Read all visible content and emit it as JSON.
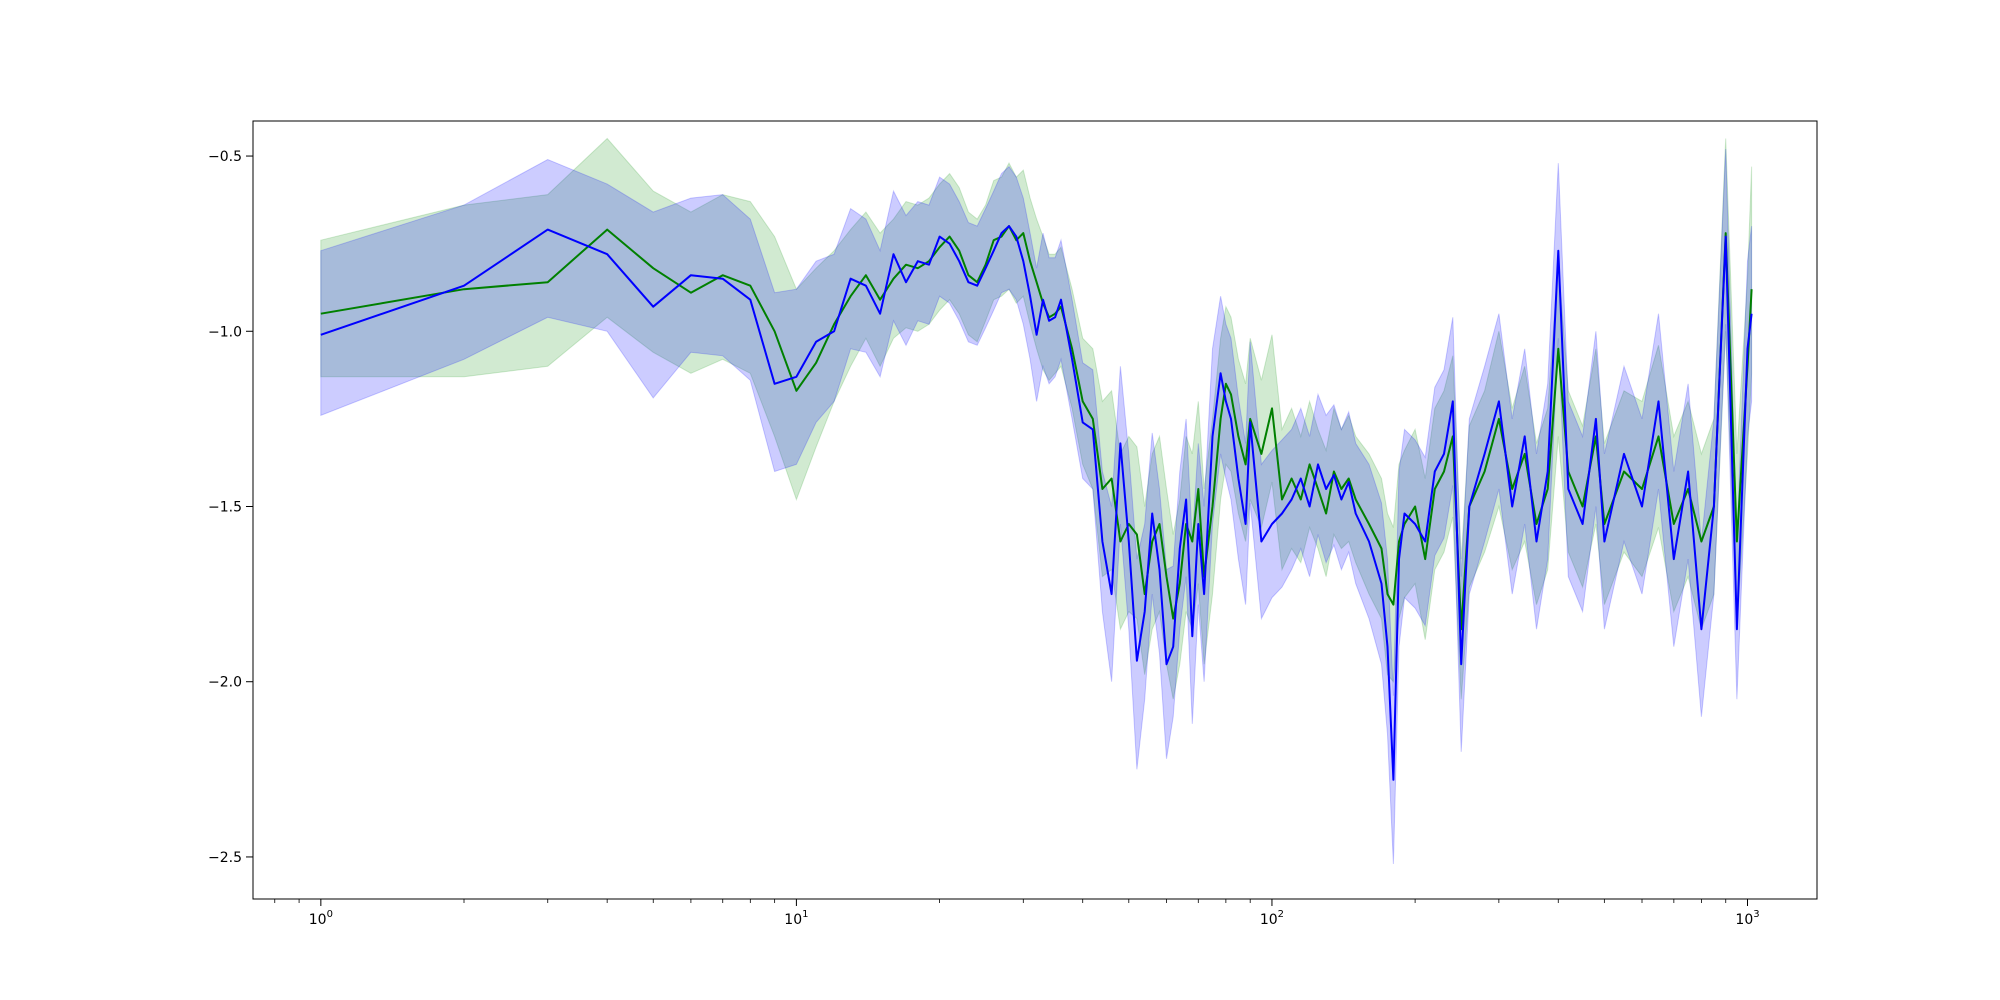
{
  "chart_data": {
    "type": "line",
    "title": "",
    "xlabel": "",
    "ylabel": "",
    "xscale": "log",
    "xlim": [
      0.72,
      1400
    ],
    "ylim": [
      -2.62,
      -0.4
    ],
    "grid": false,
    "legend": "none",
    "x_ticks": [
      {
        "value": 1,
        "base": "10",
        "exp": "0"
      },
      {
        "value": 10,
        "base": "10",
        "exp": "1"
      },
      {
        "value": 100,
        "base": "10",
        "exp": "2"
      },
      {
        "value": 1000,
        "base": "10",
        "exp": "3"
      }
    ],
    "y_ticks": [
      {
        "value": -0.5,
        "label": "−0.5"
      },
      {
        "value": -1.0,
        "label": "−1.0"
      },
      {
        "value": -1.5,
        "label": "−1.5"
      },
      {
        "value": -2.0,
        "label": "−2.0"
      },
      {
        "value": -2.5,
        "label": "−2.5"
      }
    ],
    "series": [
      {
        "color": "#008000",
        "band_color": "#2ca02c",
        "band_opacity": 0.22,
        "x": [
          1,
          2,
          3,
          4,
          5,
          6,
          7,
          8,
          9,
          10,
          11,
          12,
          13,
          14,
          15,
          16,
          17,
          18,
          19,
          20,
          21,
          22,
          23,
          24,
          25,
          26,
          27,
          28,
          29,
          30,
          31,
          32,
          33,
          34,
          35,
          36,
          38,
          40,
          42,
          44,
          46,
          48,
          50,
          52,
          54,
          56,
          58,
          60,
          62,
          64,
          66,
          68,
          70,
          72,
          75,
          78,
          80,
          82,
          85,
          88,
          90,
          95,
          100,
          105,
          110,
          115,
          120,
          125,
          130,
          135,
          140,
          145,
          150,
          160,
          170,
          175,
          180,
          185,
          190,
          200,
          210,
          220,
          230,
          240,
          250,
          260,
          280,
          300,
          320,
          340,
          360,
          380,
          400,
          420,
          450,
          480,
          500,
          550,
          600,
          650,
          700,
          750,
          800,
          850,
          900,
          950,
          1000,
          1020
        ],
        "y": [
          -0.95,
          -0.88,
          -0.86,
          -0.71,
          -0.82,
          -0.89,
          -0.84,
          -0.87,
          -1.0,
          -1.17,
          -1.09,
          -0.98,
          -0.9,
          -0.84,
          -0.91,
          -0.85,
          -0.81,
          -0.82,
          -0.8,
          -0.76,
          -0.73,
          -0.77,
          -0.84,
          -0.86,
          -0.81,
          -0.74,
          -0.73,
          -0.7,
          -0.74,
          -0.72,
          -0.8,
          -0.86,
          -0.92,
          -0.96,
          -0.95,
          -0.93,
          -1.05,
          -1.2,
          -1.25,
          -1.45,
          -1.42,
          -1.6,
          -1.55,
          -1.58,
          -1.75,
          -1.6,
          -1.55,
          -1.7,
          -1.82,
          -1.72,
          -1.55,
          -1.6,
          -1.45,
          -1.7,
          -1.5,
          -1.25,
          -1.15,
          -1.18,
          -1.3,
          -1.38,
          -1.25,
          -1.35,
          -1.22,
          -1.48,
          -1.42,
          -1.48,
          -1.38,
          -1.45,
          -1.52,
          -1.4,
          -1.45,
          -1.42,
          -1.48,
          -1.55,
          -1.62,
          -1.75,
          -1.78,
          -1.6,
          -1.55,
          -1.5,
          -1.65,
          -1.45,
          -1.4,
          -1.3,
          -1.85,
          -1.5,
          -1.4,
          -1.25,
          -1.45,
          -1.35,
          -1.55,
          -1.45,
          -1.05,
          -1.4,
          -1.5,
          -1.3,
          -1.55,
          -1.4,
          -1.45,
          -1.3,
          -1.55,
          -1.45,
          -1.6,
          -1.5,
          -0.72,
          -1.6,
          -1.1,
          -0.88
        ],
        "lower": [
          -1.13,
          -1.13,
          -1.1,
          -0.96,
          -1.06,
          -1.12,
          -1.08,
          -1.12,
          -1.3,
          -1.48,
          -1.33,
          -1.2,
          -1.1,
          -1.02,
          -1.1,
          -1.02,
          -0.99,
          -1.0,
          -0.98,
          -0.94,
          -0.91,
          -0.95,
          -1.01,
          -1.03,
          -0.97,
          -0.91,
          -0.9,
          -0.88,
          -0.92,
          -0.9,
          -0.98,
          -1.05,
          -1.11,
          -1.14,
          -1.12,
          -1.1,
          -1.22,
          -1.38,
          -1.45,
          -1.7,
          -1.68,
          -1.85,
          -1.8,
          -1.82,
          -1.98,
          -1.85,
          -1.8,
          -1.95,
          -2.05,
          -1.95,
          -1.8,
          -1.85,
          -1.72,
          -1.95,
          -1.75,
          -1.48,
          -1.38,
          -1.4,
          -1.52,
          -1.6,
          -1.48,
          -1.56,
          -1.43,
          -1.68,
          -1.62,
          -1.66,
          -1.56,
          -1.62,
          -1.7,
          -1.58,
          -1.62,
          -1.6,
          -1.66,
          -1.75,
          -1.82,
          -1.98,
          -2.0,
          -1.82,
          -1.76,
          -1.72,
          -1.88,
          -1.68,
          -1.63,
          -1.53,
          -2.05,
          -1.73,
          -1.63,
          -1.5,
          -1.68,
          -1.6,
          -1.78,
          -1.68,
          -1.3,
          -1.63,
          -1.73,
          -1.55,
          -1.78,
          -1.63,
          -1.7,
          -1.56,
          -1.8,
          -1.7,
          -1.85,
          -1.75,
          -1.0,
          -1.85,
          -1.35,
          -1.12
        ],
        "upper": [
          -0.74,
          -0.64,
          -0.61,
          -0.45,
          -0.6,
          -0.66,
          -0.61,
          -0.63,
          -0.73,
          -0.88,
          -0.82,
          -0.77,
          -0.71,
          -0.66,
          -0.72,
          -0.68,
          -0.63,
          -0.64,
          -0.62,
          -0.58,
          -0.55,
          -0.59,
          -0.66,
          -0.68,
          -0.64,
          -0.57,
          -0.56,
          -0.52,
          -0.56,
          -0.54,
          -0.62,
          -0.68,
          -0.73,
          -0.78,
          -0.78,
          -0.76,
          -0.88,
          -1.02,
          -1.05,
          -1.2,
          -1.17,
          -1.35,
          -1.3,
          -1.33,
          -1.5,
          -1.35,
          -1.3,
          -1.45,
          -1.58,
          -1.48,
          -1.3,
          -1.35,
          -1.2,
          -1.45,
          -1.25,
          -1.02,
          -0.93,
          -0.96,
          -1.08,
          -1.15,
          -1.02,
          -1.14,
          -1.01,
          -1.28,
          -1.22,
          -1.3,
          -1.2,
          -1.28,
          -1.34,
          -1.22,
          -1.28,
          -1.24,
          -1.3,
          -1.35,
          -1.42,
          -1.52,
          -1.56,
          -1.38,
          -1.34,
          -1.28,
          -1.42,
          -1.22,
          -1.17,
          -1.07,
          -1.65,
          -1.27,
          -1.17,
          -1.0,
          -1.22,
          -1.1,
          -1.32,
          -1.22,
          -0.8,
          -1.17,
          -1.27,
          -1.05,
          -1.32,
          -1.17,
          -1.2,
          -1.04,
          -1.3,
          -1.2,
          -1.35,
          -1.25,
          -0.45,
          -1.35,
          -0.85,
          -0.53
        ]
      },
      {
        "color": "#0000ff",
        "band_color": "#0000ff",
        "band_opacity": 0.2,
        "x": [
          1,
          2,
          3,
          4,
          5,
          6,
          7,
          8,
          9,
          10,
          11,
          12,
          13,
          14,
          15,
          16,
          17,
          18,
          19,
          20,
          21,
          22,
          23,
          24,
          25,
          26,
          27,
          28,
          29,
          30,
          31,
          32,
          33,
          34,
          35,
          36,
          38,
          40,
          42,
          44,
          46,
          48,
          50,
          52,
          54,
          56,
          58,
          60,
          62,
          64,
          66,
          68,
          70,
          72,
          75,
          78,
          80,
          82,
          85,
          88,
          90,
          95,
          100,
          105,
          110,
          115,
          120,
          125,
          130,
          135,
          140,
          145,
          150,
          160,
          170,
          175,
          180,
          185,
          190,
          200,
          210,
          220,
          230,
          240,
          250,
          260,
          280,
          300,
          320,
          340,
          360,
          380,
          400,
          420,
          450,
          480,
          500,
          550,
          600,
          650,
          700,
          750,
          800,
          850,
          900,
          950,
          1000,
          1020
        ],
        "y": [
          -1.01,
          -0.87,
          -0.71,
          -0.78,
          -0.93,
          -0.84,
          -0.85,
          -0.91,
          -1.15,
          -1.13,
          -1.03,
          -1.0,
          -0.85,
          -0.87,
          -0.95,
          -0.78,
          -0.86,
          -0.8,
          -0.81,
          -0.73,
          -0.75,
          -0.8,
          -0.86,
          -0.87,
          -0.82,
          -0.77,
          -0.72,
          -0.7,
          -0.73,
          -0.8,
          -0.9,
          -1.01,
          -0.91,
          -0.97,
          -0.96,
          -0.91,
          -1.08,
          -1.26,
          -1.28,
          -1.6,
          -1.75,
          -1.32,
          -1.6,
          -1.94,
          -1.8,
          -1.52,
          -1.68,
          -1.95,
          -1.9,
          -1.62,
          -1.48,
          -1.87,
          -1.55,
          -1.75,
          -1.3,
          -1.12,
          -1.2,
          -1.25,
          -1.42,
          -1.55,
          -1.26,
          -1.6,
          -1.55,
          -1.52,
          -1.48,
          -1.42,
          -1.5,
          -1.38,
          -1.45,
          -1.41,
          -1.48,
          -1.43,
          -1.52,
          -1.6,
          -1.72,
          -1.9,
          -2.28,
          -1.65,
          -1.52,
          -1.55,
          -1.6,
          -1.4,
          -1.35,
          -1.2,
          -1.95,
          -1.5,
          -1.35,
          -1.2,
          -1.5,
          -1.3,
          -1.6,
          -1.4,
          -0.77,
          -1.45,
          -1.55,
          -1.25,
          -1.6,
          -1.35,
          -1.5,
          -1.2,
          -1.65,
          -1.4,
          -1.85,
          -1.5,
          -0.73,
          -1.85,
          -1.05,
          -0.95
        ],
        "lower": [
          -1.24,
          -1.08,
          -0.96,
          -1.0,
          -1.19,
          -1.06,
          -1.07,
          -1.14,
          -1.4,
          -1.38,
          -1.26,
          -1.2,
          -1.05,
          -1.06,
          -1.13,
          -0.97,
          -1.04,
          -0.97,
          -0.98,
          -0.9,
          -0.92,
          -0.97,
          -1.03,
          -1.04,
          -0.99,
          -0.94,
          -0.89,
          -0.88,
          -0.91,
          -0.98,
          -1.08,
          -1.2,
          -1.1,
          -1.15,
          -1.13,
          -1.08,
          -1.25,
          -1.42,
          -1.45,
          -1.8,
          -2.0,
          -1.55,
          -1.85,
          -2.25,
          -2.05,
          -1.75,
          -1.92,
          -2.22,
          -2.1,
          -1.85,
          -1.7,
          -2.12,
          -1.78,
          -2.0,
          -1.55,
          -1.35,
          -1.42,
          -1.48,
          -1.65,
          -1.78,
          -1.49,
          -1.82,
          -1.76,
          -1.73,
          -1.68,
          -1.62,
          -1.7,
          -1.58,
          -1.66,
          -1.61,
          -1.68,
          -1.63,
          -1.72,
          -1.82,
          -1.95,
          -2.15,
          -2.52,
          -1.9,
          -1.76,
          -1.79,
          -1.84,
          -1.64,
          -1.59,
          -1.44,
          -2.2,
          -1.75,
          -1.6,
          -1.45,
          -1.75,
          -1.55,
          -1.85,
          -1.65,
          -1.02,
          -1.7,
          -1.8,
          -1.5,
          -1.85,
          -1.6,
          -1.75,
          -1.45,
          -1.9,
          -1.65,
          -2.1,
          -1.75,
          -0.98,
          -2.05,
          -1.3,
          -1.2
        ],
        "upper": [
          -0.77,
          -0.64,
          -0.51,
          -0.58,
          -0.66,
          -0.62,
          -0.61,
          -0.68,
          -0.89,
          -0.88,
          -0.8,
          -0.78,
          -0.65,
          -0.68,
          -0.77,
          -0.6,
          -0.67,
          -0.63,
          -0.64,
          -0.56,
          -0.58,
          -0.63,
          -0.69,
          -0.7,
          -0.65,
          -0.6,
          -0.55,
          -0.53,
          -0.56,
          -0.62,
          -0.72,
          -0.82,
          -0.72,
          -0.79,
          -0.79,
          -0.74,
          -0.91,
          -1.09,
          -1.11,
          -1.4,
          -1.5,
          -1.1,
          -1.35,
          -1.65,
          -1.55,
          -1.29,
          -1.45,
          -1.68,
          -1.67,
          -1.4,
          -1.25,
          -1.6,
          -1.32,
          -1.5,
          -1.05,
          -0.9,
          -0.98,
          -1.02,
          -1.19,
          -1.32,
          -1.03,
          -1.38,
          -1.34,
          -1.31,
          -1.28,
          -1.22,
          -1.3,
          -1.18,
          -1.24,
          -1.21,
          -1.28,
          -1.23,
          -1.32,
          -1.38,
          -1.49,
          -1.65,
          -2.04,
          -1.4,
          -1.28,
          -1.31,
          -1.36,
          -1.16,
          -1.11,
          -0.96,
          -1.7,
          -1.25,
          -1.1,
          -0.95,
          -1.25,
          -1.05,
          -1.35,
          -1.15,
          -0.52,
          -1.2,
          -1.3,
          -1.0,
          -1.35,
          -1.1,
          -1.25,
          -0.95,
          -1.4,
          -1.15,
          -1.6,
          -1.25,
          -0.48,
          -1.6,
          -0.8,
          -0.7
        ]
      }
    ]
  }
}
